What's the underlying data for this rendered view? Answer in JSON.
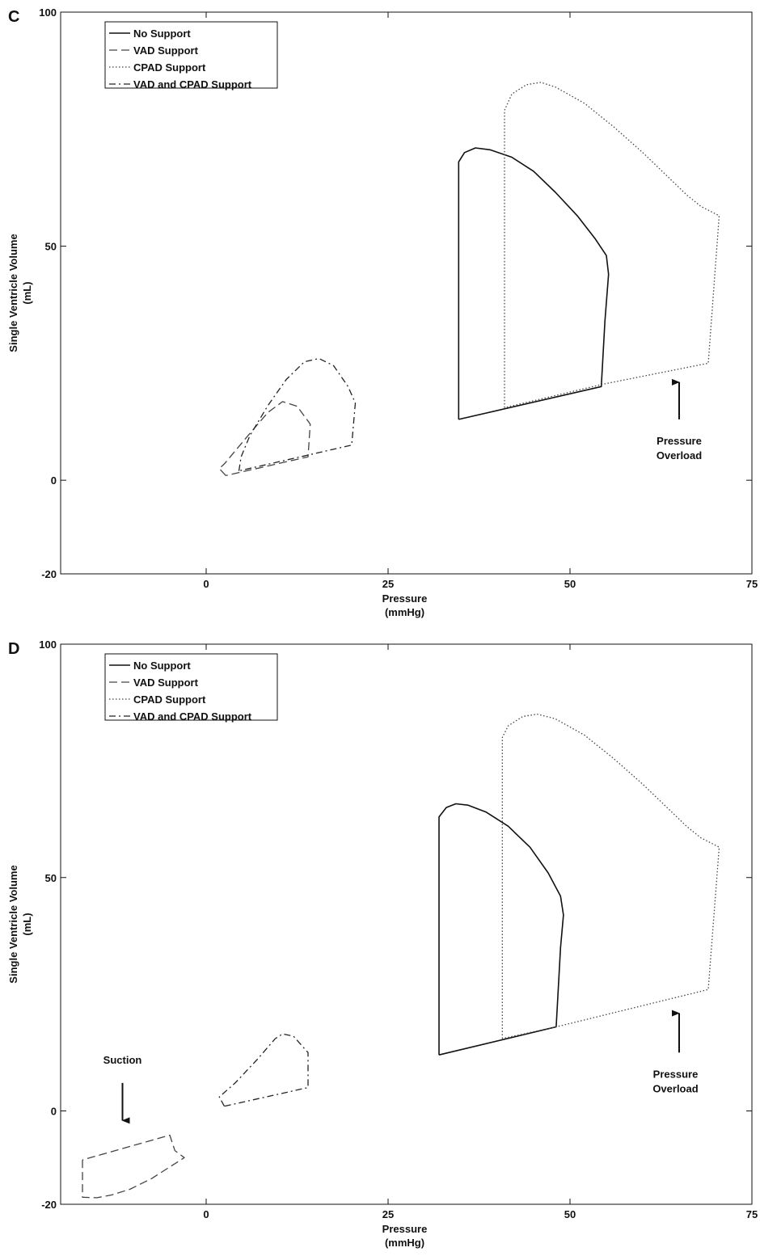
{
  "chart_data": [
    {
      "type": "line",
      "panel_label": "C",
      "xlabel": "Pressure",
      "xunit": "(mmHg)",
      "ylabel": "Single Ventricle Volume",
      "yunit": "(mL)",
      "xlim": [
        -20,
        75
      ],
      "ylim": [
        -20,
        100
      ],
      "xticks": [
        0,
        25,
        50,
        75
      ],
      "yticks": [
        -20,
        0,
        50,
        100
      ],
      "legend": {
        "position": "top-left"
      },
      "series": [
        {
          "name": "No Support",
          "style": "solid",
          "points": [
            [
              34.7,
              13
            ],
            [
              34.7,
              68
            ],
            [
              35.5,
              70
            ],
            [
              37,
              71
            ],
            [
              39,
              70.6
            ],
            [
              42,
              69
            ],
            [
              45,
              66
            ],
            [
              48,
              61.5
            ],
            [
              51,
              56.5
            ],
            [
              53.5,
              51.5
            ],
            [
              55,
              48
            ],
            [
              55.3,
              44
            ],
            [
              54.8,
              34
            ],
            [
              54.3,
              20
            ],
            [
              34.7,
              13
            ]
          ]
        },
        {
          "name": "VAD Support",
          "style": "dashed",
          "points": [
            [
              2.7,
              1
            ],
            [
              1.8,
              2.5
            ],
            [
              2.5,
              3.5
            ],
            [
              6,
              10
            ],
            [
              8.5,
              14.5
            ],
            [
              10.5,
              16.8
            ],
            [
              12.5,
              15.8
            ],
            [
              14.3,
              12
            ],
            [
              14,
              5
            ],
            [
              2.7,
              1
            ]
          ]
        },
        {
          "name": "CPAD Support",
          "style": "dotted",
          "points": [
            [
              41,
              15.5
            ],
            [
              41,
              79
            ],
            [
              42,
              82.5
            ],
            [
              44,
              84.5
            ],
            [
              46,
              85
            ],
            [
              48,
              84
            ],
            [
              52,
              80.5
            ],
            [
              56,
              75.5
            ],
            [
              60,
              70
            ],
            [
              63,
              65.5
            ],
            [
              66,
              61
            ],
            [
              68,
              58.5
            ],
            [
              70.5,
              56.5
            ],
            [
              69,
              25
            ],
            [
              54.5,
              20.5
            ],
            [
              41,
              15.5
            ]
          ]
        },
        {
          "name": "VAD and CPAD Support",
          "style": "dashdot",
          "points": [
            [
              4.5,
              2
            ],
            [
              4.8,
              5
            ],
            [
              6,
              9.5
            ],
            [
              8.5,
              16
            ],
            [
              11,
              21.5
            ],
            [
              13.5,
              25.3
            ],
            [
              15.5,
              26
            ],
            [
              17.5,
              24.5
            ],
            [
              19.5,
              20
            ],
            [
              20.5,
              16.5
            ],
            [
              20,
              7.5
            ],
            [
              4.5,
              2
            ]
          ]
        }
      ],
      "annotations": [
        {
          "lines": [
            "Pressure",
            "Overload"
          ],
          "at": [
            65,
            8.5
          ],
          "arrow_from": [
            65,
            13
          ],
          "arrow_to": [
            65,
            22.5
          ]
        }
      ]
    },
    {
      "type": "line",
      "panel_label": "D",
      "xlabel": "Pressure",
      "xunit": "(mmHg)",
      "ylabel": "Single Ventricle Volume",
      "yunit": "(mL)",
      "xlim": [
        -20,
        75
      ],
      "ylim": [
        -20,
        100
      ],
      "xticks": [
        0,
        25,
        50,
        75
      ],
      "yticks": [
        -20,
        0,
        50,
        100
      ],
      "legend": {
        "position": "top-left"
      },
      "series": [
        {
          "name": "No Support",
          "style": "solid",
          "points": [
            [
              32,
              12
            ],
            [
              32,
              63
            ],
            [
              33,
              65
            ],
            [
              34.3,
              65.8
            ],
            [
              36,
              65.5
            ],
            [
              38.5,
              64
            ],
            [
              41.5,
              61
            ],
            [
              44.5,
              56.5
            ],
            [
              47,
              51
            ],
            [
              48.7,
              46
            ],
            [
              49.1,
              42
            ],
            [
              48.7,
              35
            ],
            [
              48.1,
              18
            ],
            [
              32,
              12
            ]
          ]
        },
        {
          "name": "VAD Support",
          "style": "dashed",
          "points": [
            [
              -17,
              -10.5
            ],
            [
              -17,
              -18.5
            ],
            [
              -15,
              -18.6
            ],
            [
              -13,
              -18
            ],
            [
              -10.5,
              -16.8
            ],
            [
              -7.5,
              -14.5
            ],
            [
              -5,
              -12
            ],
            [
              -3,
              -10
            ],
            [
              -4.3,
              -8.5
            ],
            [
              -5,
              -5.2
            ],
            [
              -17,
              -10.5
            ]
          ]
        },
        {
          "name": "CPAD Support",
          "style": "dotted",
          "points": [
            [
              40.7,
              15.5
            ],
            [
              40.7,
              80
            ],
            [
              41.5,
              82.5
            ],
            [
              43.5,
              84.5
            ],
            [
              45.5,
              85
            ],
            [
              48,
              84
            ],
            [
              52,
              80.5
            ],
            [
              56,
              75.5
            ],
            [
              60,
              70
            ],
            [
              63,
              65.5
            ],
            [
              66,
              61
            ],
            [
              68,
              58.5
            ],
            [
              70.5,
              56.5
            ],
            [
              69,
              26
            ],
            [
              48.1,
              18
            ],
            [
              40.7,
              15.5
            ]
          ]
        },
        {
          "name": "VAD and CPAD Support",
          "style": "dashdot",
          "points": [
            [
              2.5,
              1
            ],
            [
              1.8,
              3
            ],
            [
              4,
              6
            ],
            [
              7,
              11
            ],
            [
              9.5,
              15.5
            ],
            [
              10.5,
              16.5
            ],
            [
              12,
              16
            ],
            [
              14,
              12.5
            ],
            [
              14,
              5
            ],
            [
              2.5,
              1
            ]
          ]
        }
      ],
      "annotations": [
        {
          "lines": [
            "Pressure",
            "Overload"
          ],
          "at": [
            64.5,
            8
          ],
          "arrow_from": [
            65,
            12.5
          ],
          "arrow_to": [
            65,
            22.5
          ]
        },
        {
          "lines": [
            "Suction"
          ],
          "at": [
            -11.5,
            11
          ],
          "arrow_from": [
            -11.5,
            6
          ],
          "arrow_to": [
            -11.5,
            -0.5
          ]
        }
      ]
    }
  ]
}
